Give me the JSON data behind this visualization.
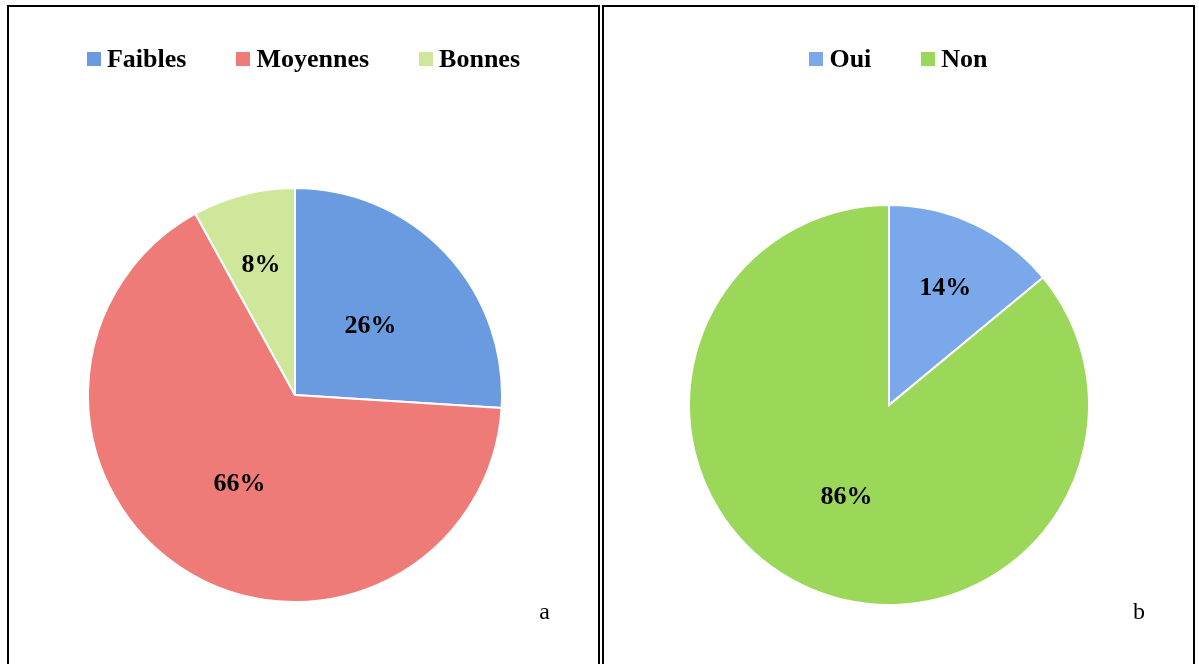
{
  "chart_data": [
    {
      "type": "pie",
      "categories": [
        "Faibles",
        "Moyennes",
        "Bonnes"
      ],
      "values": [
        26,
        66,
        8
      ],
      "colors": [
        "#6a9be0",
        "#ee7b78",
        "#cfe79a"
      ],
      "value_labels": [
        "26%",
        "66%",
        "8%"
      ],
      "legend": "top",
      "annotations": [
        "a"
      ]
    },
    {
      "type": "pie",
      "categories": [
        "Oui",
        "Non"
      ],
      "values": [
        14,
        86
      ],
      "colors": [
        "#7aa8ea",
        "#9bd85a"
      ],
      "value_labels": [
        "14%",
        "86%"
      ],
      "legend": "top",
      "annotations": [
        "b"
      ]
    }
  ]
}
